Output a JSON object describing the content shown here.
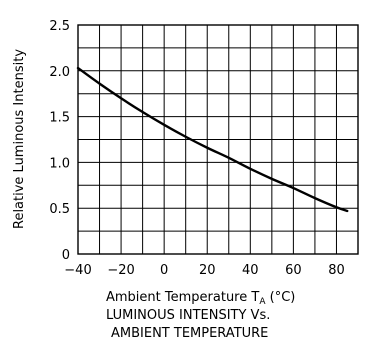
{
  "chart_data": {
    "type": "line",
    "title": "",
    "xlabel": "Ambient Temperature TA (°C)",
    "ylabel": "Relative Luminous Intensity",
    "xlim": [
      -40,
      90
    ],
    "ylim": [
      0,
      2.5
    ],
    "x_ticks": [
      "-40",
      "-20",
      "0",
      "20",
      "40",
      "60",
      "80"
    ],
    "y_ticks": [
      "0",
      "0.5",
      "1.0",
      "1.5",
      "2.0",
      "2.5"
    ],
    "grid": true,
    "series": [
      {
        "x": [
          -40,
          -30,
          -20,
          -10,
          0,
          10,
          20,
          30,
          40,
          50,
          60,
          70,
          80,
          85
        ],
        "y": [
          2.03,
          1.86,
          1.7,
          1.55,
          1.41,
          1.28,
          1.16,
          1.05,
          0.93,
          0.82,
          0.72,
          0.61,
          0.51,
          0.47
        ]
      }
    ]
  },
  "caption": {
    "line1": "LUMINOUS INTENSITY Vs.",
    "line2": "AMBIENT TEMPERATURE"
  },
  "labels": {
    "xlabel_main": "Ambient Temperature T",
    "xlabel_sub": "A",
    "xlabel_unit": " (°C)"
  }
}
